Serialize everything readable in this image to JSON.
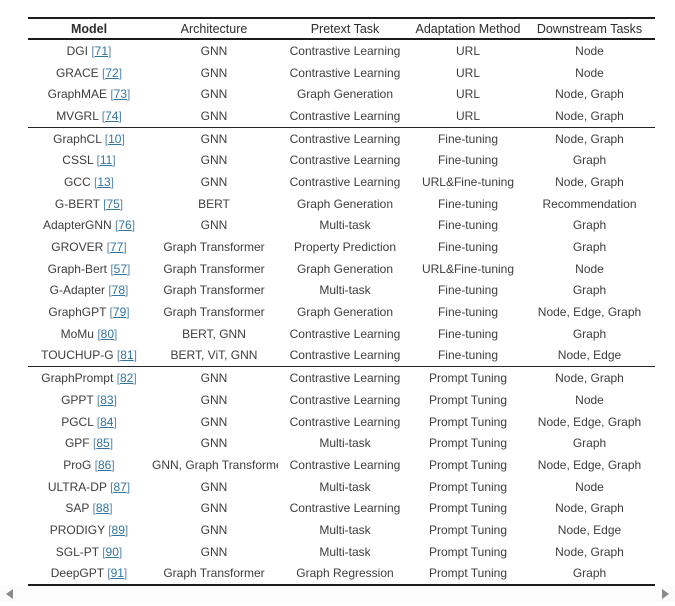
{
  "table": {
    "columns": [
      "Model",
      "Architecture",
      "Pretext Task",
      "Adaptation Method",
      "Downstream Tasks"
    ],
    "cite_open": "[",
    "cite_close": "]",
    "groups": [
      {
        "rows": [
          {
            "model": "DGI",
            "ref": "71",
            "architecture": "GNN",
            "pretext": "Contrastive Learning",
            "adaptation": "URL",
            "downstream": "Node"
          },
          {
            "model": "GRACE",
            "ref": "72",
            "architecture": "GNN",
            "pretext": "Contrastive Learning",
            "adaptation": "URL",
            "downstream": "Node"
          },
          {
            "model": "GraphMAE",
            "ref": "73",
            "architecture": "GNN",
            "pretext": "Graph Generation",
            "adaptation": "URL",
            "downstream": "Node, Graph"
          },
          {
            "model": "MVGRL",
            "ref": "74",
            "architecture": "GNN",
            "pretext": "Contrastive Learning",
            "adaptation": "URL",
            "downstream": "Node, Graph"
          }
        ]
      },
      {
        "rows": [
          {
            "model": "GraphCL",
            "ref": "10",
            "architecture": "GNN",
            "pretext": "Contrastive Learning",
            "adaptation": "Fine-tuning",
            "downstream": "Node, Graph"
          },
          {
            "model": "CSSL",
            "ref": "11",
            "architecture": "GNN",
            "pretext": "Contrastive Learning",
            "adaptation": "Fine-tuning",
            "downstream": "Graph"
          },
          {
            "model": "GCC",
            "ref": "13",
            "architecture": "GNN",
            "pretext": "Contrastive Learning",
            "adaptation": "URL&Fine-tuning",
            "downstream": "Node, Graph"
          },
          {
            "model": "G-BERT",
            "ref": "75",
            "architecture": "BERT",
            "pretext": "Graph Generation",
            "adaptation": "Fine-tuning",
            "downstream": "Recommendation"
          },
          {
            "model": "AdapterGNN",
            "ref": "76",
            "architecture": "GNN",
            "pretext": "Multi-task",
            "adaptation": "Fine-tuning",
            "downstream": "Graph"
          },
          {
            "model": "GROVER",
            "ref": "77",
            "architecture": "Graph Transformer",
            "pretext": "Property Prediction",
            "adaptation": "Fine-tuning",
            "downstream": "Graph"
          },
          {
            "model": "Graph-Bert",
            "ref": "57",
            "architecture": "Graph Transformer",
            "pretext": "Graph Generation",
            "adaptation": "URL&Fine-tuning",
            "downstream": "Node"
          },
          {
            "model": "G-Adapter",
            "ref": "78",
            "architecture": "Graph Transformer",
            "pretext": "Multi-task",
            "adaptation": "Fine-tuning",
            "downstream": "Graph"
          },
          {
            "model": "GraphGPT",
            "ref": "79",
            "architecture": "Graph Transformer",
            "pretext": "Graph Generation",
            "adaptation": "Fine-tuning",
            "downstream": "Node, Edge, Graph"
          },
          {
            "model": "MoMu",
            "ref": "80",
            "architecture": "BERT, GNN",
            "pretext": "Contrastive Learning",
            "adaptation": "Fine-tuning",
            "downstream": "Graph"
          },
          {
            "model": "TOUCHUP-G",
            "ref": "81",
            "architecture": "BERT, ViT, GNN",
            "pretext": "Contrastive Learning",
            "adaptation": "Fine-tuning",
            "downstream": "Node, Edge"
          }
        ]
      },
      {
        "rows": [
          {
            "model": "GraphPrompt",
            "ref": "82",
            "architecture": "GNN",
            "pretext": "Contrastive Learning",
            "adaptation": "Prompt Tuning",
            "downstream": "Node, Graph"
          },
          {
            "model": "GPPT",
            "ref": "83",
            "architecture": "GNN",
            "pretext": "Contrastive Learning",
            "adaptation": "Prompt Tuning",
            "downstream": "Node"
          },
          {
            "model": "PGCL",
            "ref": "84",
            "architecture": "GNN",
            "pretext": "Contrastive Learning",
            "adaptation": "Prompt Tuning",
            "downstream": "Node, Edge, Graph"
          },
          {
            "model": "GPF",
            "ref": "85",
            "architecture": "GNN",
            "pretext": "Multi-task",
            "adaptation": "Prompt Tuning",
            "downstream": "Graph"
          },
          {
            "model": "ProG",
            "ref": "86",
            "architecture": "GNN, Graph Transformer",
            "pretext": "Contrastive Learning",
            "adaptation": "Prompt Tuning",
            "downstream": "Node, Edge, Graph"
          },
          {
            "model": "ULTRA-DP",
            "ref": "87",
            "architecture": "GNN",
            "pretext": "Multi-task",
            "adaptation": "Prompt Tuning",
            "downstream": "Node"
          },
          {
            "model": "SAP",
            "ref": "88",
            "architecture": "GNN",
            "pretext": "Contrastive Learning",
            "adaptation": "Prompt Tuning",
            "downstream": "Node, Graph"
          },
          {
            "model": "PRODIGY",
            "ref": "89",
            "architecture": "GNN",
            "pretext": "Multi-task",
            "adaptation": "Prompt Tuning",
            "downstream": "Node, Edge"
          },
          {
            "model": "SGL-PT",
            "ref": "90",
            "architecture": "GNN",
            "pretext": "Multi-task",
            "adaptation": "Prompt Tuning",
            "downstream": "Node, Graph"
          },
          {
            "model": "DeepGPT",
            "ref": "91",
            "architecture": "Graph Transformer",
            "pretext": "Graph Regression",
            "adaptation": "Prompt Tuning",
            "downstream": "Graph"
          }
        ]
      }
    ]
  },
  "colors": {
    "link": "#32749f",
    "text": "#3d3d3d",
    "border": "#1c1c1c",
    "scroll_arrow": "#8a8a8a"
  }
}
